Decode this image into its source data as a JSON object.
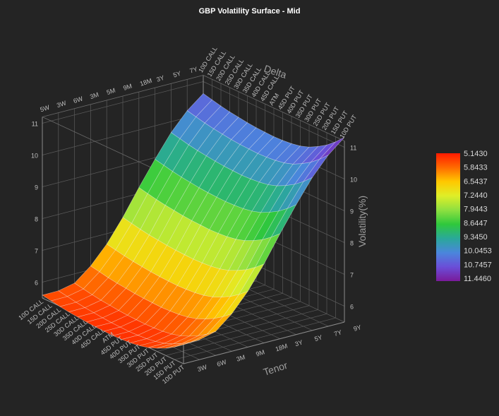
{
  "chart_data": {
    "type": "surface",
    "title": "GBP Volatility Surface - Mid",
    "xlabel": "Delta",
    "ylabel": "Tenor",
    "zlabel": "Volatility(%)",
    "zlim": [
      5.5,
      11.2
    ],
    "z_ticks": [
      "6",
      "7",
      "8",
      "9",
      "10",
      "11"
    ],
    "delta": [
      "10D PUT",
      "15D PUT",
      "20D PUT",
      "25D PUT",
      "30D PUT",
      "35D PUT",
      "40D PUT",
      "45D PUT",
      "ATM",
      "45D CALL",
      "40D CALL",
      "35D CALL",
      "30D CALL",
      "25D CALL",
      "20D CALL",
      "15D CALL",
      "10D CALL"
    ],
    "tenor": [
      "3W",
      "5W",
      "6W",
      "3M",
      "5M",
      "9M",
      "18M",
      "3Y",
      "5Y",
      "7Y",
      "9Y"
    ],
    "tenor_back_labels": [
      "5W",
      "3W",
      "6W",
      "3M",
      "5M",
      "9M",
      "18M",
      "3Y",
      "5Y",
      "7Y"
    ],
    "tenor_front_labels": [
      "3W",
      "6W",
      "3M",
      "9M",
      "18M",
      "3Y",
      "5Y",
      "7Y",
      "9Y"
    ],
    "tenor_vol_center": [
      5.35,
      5.35,
      5.45,
      5.85,
      6.4,
      7.1,
      7.9,
      8.65,
      9.35,
      9.9,
      10.3
    ],
    "smile_put": [
      0.75,
      0.55,
      0.38,
      0.25,
      0.14,
      0.07,
      0.03,
      0.01,
      0.0
    ],
    "smile_call": [
      0.0,
      0.01,
      0.02,
      0.04,
      0.07,
      0.1,
      0.14,
      0.19,
      0.24
    ],
    "colorbar": {
      "labels": [
        "5.1430",
        "5.8433",
        "6.5437",
        "7.2440",
        "7.9443",
        "8.6447",
        "9.3450",
        "10.0453",
        "10.7457",
        "11.4460"
      ],
      "colors": [
        "#ff1a00",
        "#ff6a00",
        "#ffc800",
        "#dfee28",
        "#8fe040",
        "#2fc83c",
        "#2aa89a",
        "#4a86dc",
        "#6a4ed8",
        "#7a1a9a"
      ]
    },
    "grid": true
  }
}
